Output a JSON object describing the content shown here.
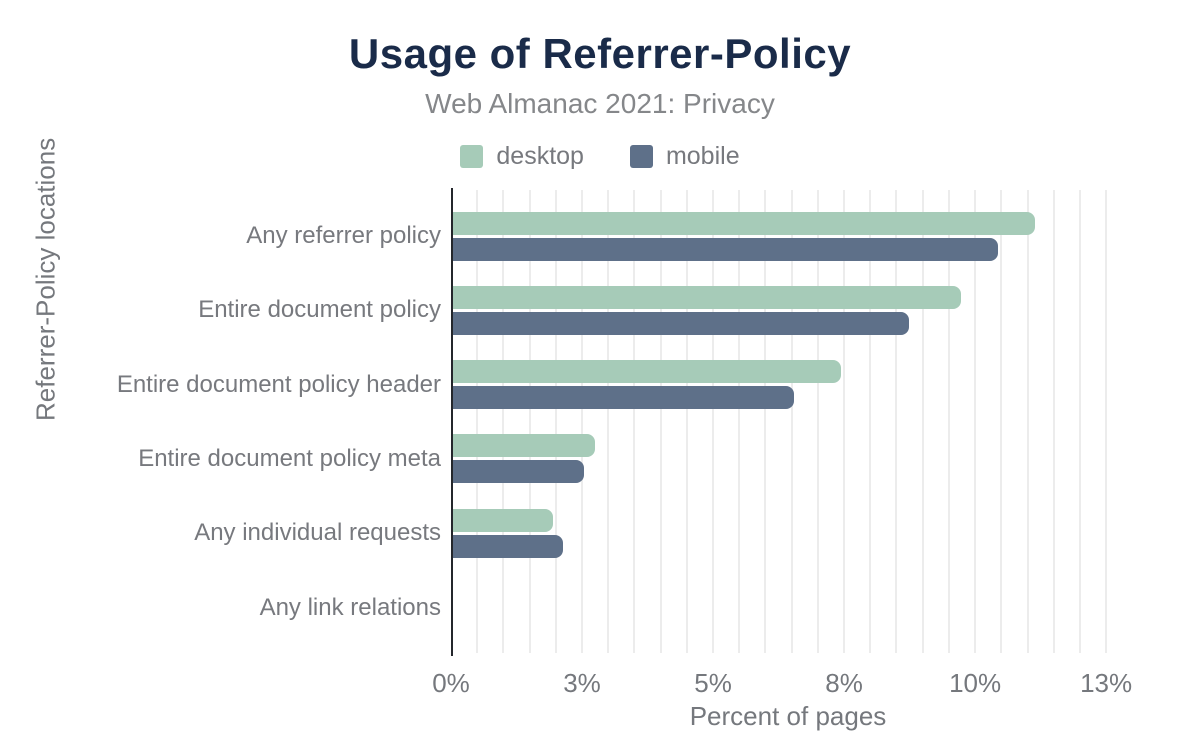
{
  "title": "Usage of Referrer-Policy",
  "subtitle": "Web Almanac 2021: Privacy",
  "legend": {
    "items": [
      {
        "label": "desktop",
        "color": "#a6cbb8"
      },
      {
        "label": "mobile",
        "color": "#5e7089"
      }
    ]
  },
  "colors": {
    "title": "#1a2b49",
    "text_gray": "#77797e",
    "desktop_bar": "#a6cbb8",
    "mobile_bar": "#5e7089",
    "gridline": "#ececec",
    "axis_line": "#24272c",
    "background": "#ffffff"
  },
  "chart_data": {
    "type": "bar",
    "orientation": "horizontal",
    "title": "Usage of Referrer-Policy",
    "subtitle": "Web Almanac 2021: Privacy",
    "xlabel": "Percent of pages",
    "ylabel": "Referrer-Policy locations",
    "categories": [
      "Any referrer policy",
      "Entire document policy",
      "Entire document policy header",
      "Entire document policy meta",
      "Any individual requests",
      "Any link relations"
    ],
    "series": [
      {
        "name": "desktop",
        "color": "#a6cbb8",
        "values": [
          11.1,
          9.7,
          7.4,
          2.7,
          1.9,
          0
        ]
      },
      {
        "name": "mobile",
        "color": "#5e7089",
        "values": [
          10.4,
          8.7,
          6.5,
          2.5,
          2.1,
          0
        ]
      }
    ],
    "value_unit": "%",
    "xlim": [
      0,
      12.86
    ],
    "xticks": [
      {
        "value": 0,
        "label": "0%"
      },
      {
        "value": 2.5,
        "label": "3%"
      },
      {
        "value": 5,
        "label": "5%"
      },
      {
        "value": 7.5,
        "label": "8%"
      },
      {
        "value": 10,
        "label": "10%"
      },
      {
        "value": 12.5,
        "label": "13%"
      }
    ],
    "gridline_step": 0.5,
    "grid": "vertical-only",
    "legend_position": "top"
  }
}
